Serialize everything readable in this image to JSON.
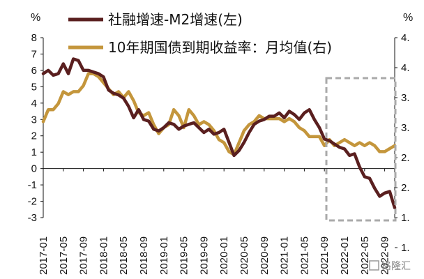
{
  "chart_data": {
    "type": "line",
    "left_unit": "%",
    "right_unit": "%",
    "left_ylim": [
      -3,
      8
    ],
    "right_ylim": [
      1.5,
      4.5
    ],
    "left_ticks": [
      "8",
      "7",
      "6",
      "5",
      "4",
      "3",
      "2",
      "1",
      "0",
      "-1",
      "-2",
      "-3"
    ],
    "right_ticks": [
      "4.",
      "4.",
      "3.",
      "3.",
      "2.",
      "2.",
      "1.",
      "1."
    ],
    "x_tick_labels": [
      "2017-01",
      "2017-05",
      "2017-09",
      "2018-01",
      "2018-05",
      "2018-09",
      "2019-01",
      "2019-05",
      "2019-09",
      "2020-01",
      "2020-05",
      "2020-09",
      "2021-01",
      "2021-05",
      "2021-09",
      "2022-01",
      "2022-05",
      "2022-09"
    ],
    "colors": {
      "series1": "#5a1f1f",
      "series2": "#c4963c",
      "box": "#aaaaaa"
    },
    "series": [
      {
        "name": "社融增速-M2增速(左)",
        "axis": "left",
        "values": [
          5.8,
          6.0,
          5.7,
          5.8,
          6.4,
          5.8,
          6.7,
          6.6,
          6.0,
          6.0,
          5.9,
          5.8,
          5.6,
          4.8,
          4.6,
          4.5,
          4.3,
          3.8,
          3.1,
          3.6,
          3.0,
          2.9,
          2.4,
          2.3,
          2.5,
          2.8,
          2.7,
          2.4,
          2.6,
          2.7,
          2.8,
          2.5,
          2.2,
          2.4,
          2.1,
          2.2,
          2.4,
          1.6,
          0.8,
          1.1,
          1.6,
          2.2,
          2.7,
          2.9,
          3.0,
          3.2,
          3.2,
          3.4,
          3.1,
          3.5,
          3.3,
          3.0,
          3.4,
          3.6,
          3.0,
          2.5,
          1.8,
          1.7,
          1.5,
          1.3,
          1.2,
          0.8,
          0.9,
          0.1,
          -0.5,
          -0.6,
          -1.2,
          -1.7,
          -1.5,
          -1.4,
          -2.4
        ]
      },
      {
        "name": "10年期国债到期收益率：月均值(右)",
        "axis": "right",
        "values": [
          3.1,
          3.3,
          3.3,
          3.4,
          3.6,
          3.55,
          3.6,
          3.6,
          3.7,
          3.9,
          3.9,
          3.85,
          3.75,
          3.65,
          3.55,
          3.6,
          3.5,
          3.6,
          3.45,
          3.25,
          3.2,
          3.25,
          3.05,
          2.9,
          3.0,
          3.05,
          3.3,
          3.2,
          3.0,
          3.3,
          3.2,
          3.05,
          3.1,
          3.05,
          2.95,
          2.8,
          2.75,
          2.6,
          2.55,
          2.75,
          2.95,
          3.05,
          3.1,
          3.2,
          3.15,
          3.15,
          3.15,
          3.15,
          3.1,
          3.15,
          3.1,
          3.0,
          2.95,
          2.85,
          2.85,
          2.85,
          2.7,
          2.8,
          2.7,
          2.75,
          2.8,
          2.75,
          2.7,
          2.75,
          2.7,
          2.75,
          2.7,
          2.6,
          2.6,
          2.65,
          2.7
        ]
      }
    ]
  },
  "watermark": "格隆汇"
}
